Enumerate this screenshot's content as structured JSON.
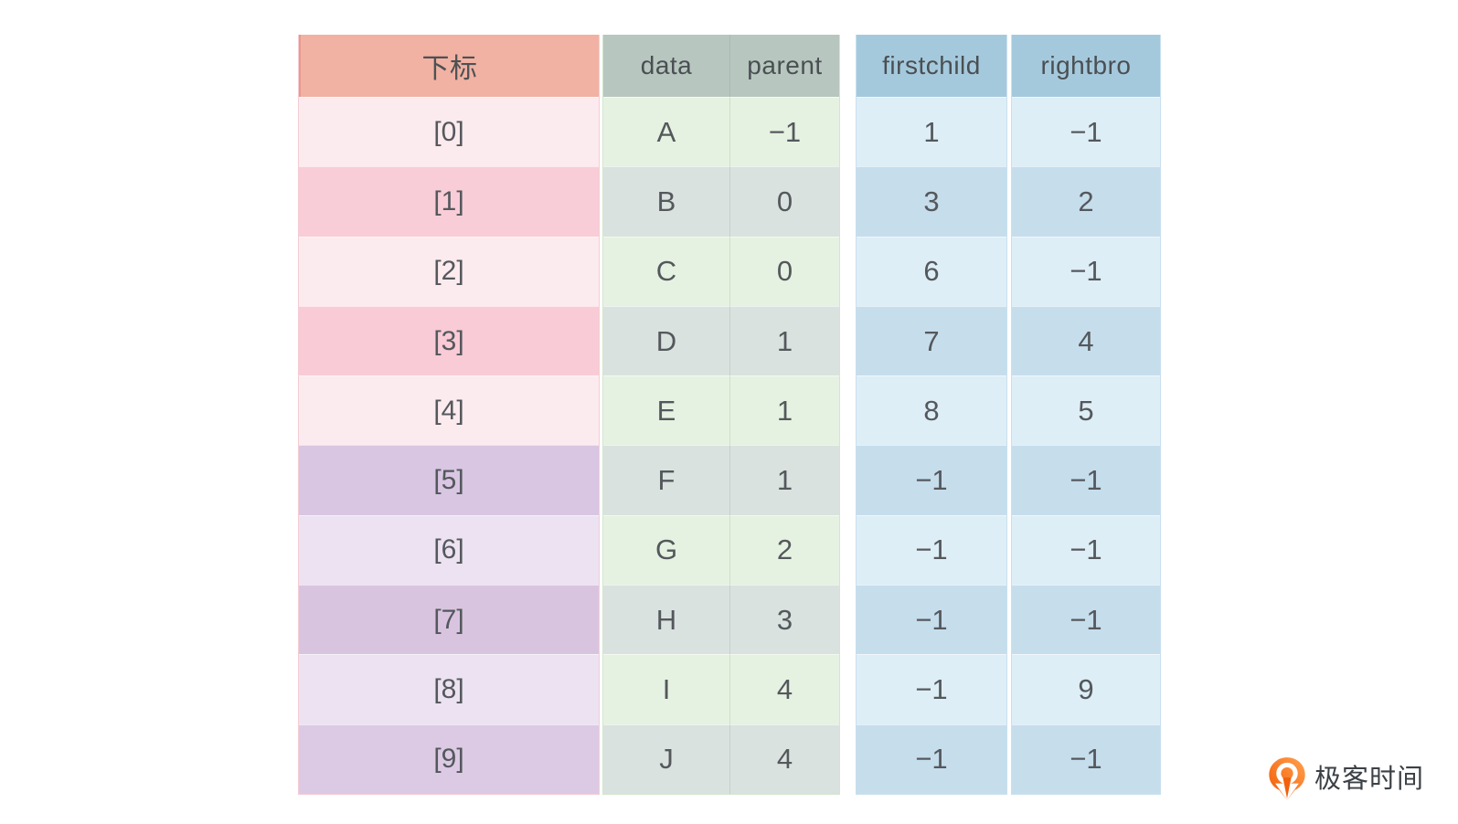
{
  "table": {
    "columns": [
      {
        "key": "index",
        "label": "下标"
      },
      {
        "key": "data",
        "label": "data"
      },
      {
        "key": "parent",
        "label": "parent"
      },
      {
        "key": "firstchild",
        "label": "firstchild"
      },
      {
        "key": "rightbro",
        "label": "rightbro"
      }
    ],
    "rows": [
      {
        "index": "[0]",
        "data": "A",
        "parent": "−1",
        "firstchild": "1",
        "rightbro": "−1"
      },
      {
        "index": "[1]",
        "data": "B",
        "parent": "0",
        "firstchild": "3",
        "rightbro": "2"
      },
      {
        "index": "[2]",
        "data": "C",
        "parent": "0",
        "firstchild": "6",
        "rightbro": "−1"
      },
      {
        "index": "[3]",
        "data": "D",
        "parent": "1",
        "firstchild": "7",
        "rightbro": "4"
      },
      {
        "index": "[4]",
        "data": "E",
        "parent": "1",
        "firstchild": "8",
        "rightbro": "5"
      },
      {
        "index": "[5]",
        "data": "F",
        "parent": "1",
        "firstchild": "−1",
        "rightbro": "−1"
      },
      {
        "index": "[6]",
        "data": "G",
        "parent": "2",
        "firstchild": "−1",
        "rightbro": "−1"
      },
      {
        "index": "[7]",
        "data": "H",
        "parent": "3",
        "firstchild": "−1",
        "rightbro": "−1"
      },
      {
        "index": "[8]",
        "data": "I",
        "parent": "4",
        "firstchild": "−1",
        "rightbro": "9"
      },
      {
        "index": "[9]",
        "data": "J",
        "parent": "4",
        "firstchild": "−1",
        "rightbro": "−1"
      }
    ]
  },
  "colors": {
    "header_index_bg": "#f1b2a3",
    "header_green_bg": "#b7c7bf",
    "header_blue_bg": "#a5c9dc",
    "index_row_bgs": [
      "#fcebee",
      "#f8cdd8",
      "#fcebee",
      "#f8cbd6",
      "#fcebee",
      "#d8c6e2",
      "#ece2f1",
      "#d9c4e0",
      "#ece2f1",
      "#dccae5"
    ],
    "green_row_bgs": [
      "#e6f2e1",
      "#d9e2de",
      "#e6f2e1",
      "#d9e2de",
      "#e6f2e1",
      "#d9e2de",
      "#e6f2e1",
      "#d9e2de",
      "#e6f2e1",
      "#d9e2de"
    ],
    "blue_row_bgs": [
      "#deeef6",
      "#c6ddec",
      "#deeef6",
      "#c6ddec",
      "#deeef6",
      "#c6ddec",
      "#deeef6",
      "#c6ddec",
      "#deeef6",
      "#c6ddec"
    ],
    "brand_orange": "#f3600b",
    "brand_orange_light": "#ffa14e",
    "cell_text": "#54585c"
  },
  "brand": {
    "name": "极客时间",
    "icon": "geektime-pin-q-icon"
  }
}
